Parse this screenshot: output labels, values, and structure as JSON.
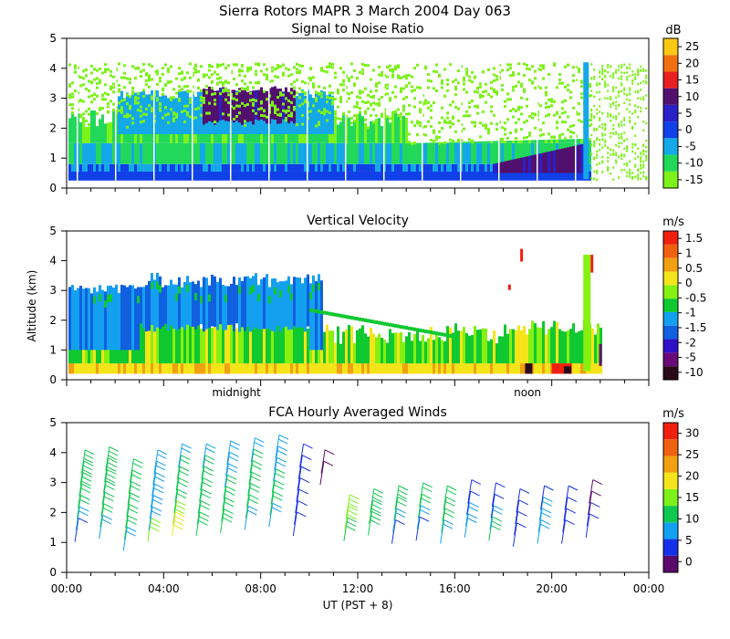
{
  "header": {
    "title": "Sierra Rotors  MAPR  3 March 2004 Day 063"
  },
  "x_axis": {
    "label": "UT  (PST + 8)",
    "range_hours": [
      0,
      24
    ],
    "ticks": [
      {
        "hour": 0,
        "label": "00:00"
      },
      {
        "hour": 4,
        "label": "04:00"
      },
      {
        "hour": 8,
        "label": "08:00"
      },
      {
        "hour": 12,
        "label": "12:00"
      },
      {
        "hour": 16,
        "label": "16:00"
      },
      {
        "hour": 20,
        "label": "20:00"
      },
      {
        "hour": 24,
        "label": "00:00"
      }
    ],
    "midpanel_labels": [
      {
        "hour": 7,
        "label": "midnight"
      },
      {
        "hour": 19,
        "label": "noon"
      }
    ]
  },
  "y_axis": {
    "label": "Altitude (km)",
    "range": [
      0,
      5
    ],
    "ticks": [
      "0",
      "1",
      "2",
      "3",
      "4",
      "5"
    ]
  },
  "colors": {
    "snr": [
      "#7df21a",
      "#22d85a",
      "#14a8e8",
      "#1040e8",
      "#2a20c8",
      "#52106e",
      "#e82020",
      "#f07010",
      "#fac814"
    ],
    "velocity": [
      "#2a0a18",
      "#6a0a7a",
      "#3010c8",
      "#1060e0",
      "#14a0f0",
      "#10c830",
      "#86f010",
      "#f5e41a",
      "#f0a010",
      "#f06010",
      "#f02010"
    ],
    "winds": [
      "#5a0a6a",
      "#1530e8",
      "#14a0f0",
      "#10c850",
      "#7df21a",
      "#f5e41a",
      "#f0a010",
      "#f06010",
      "#f02010"
    ]
  },
  "chart_data": [
    {
      "type": "heatmap",
      "name": "snr",
      "title": "Signal to Noise Ratio",
      "xlabel": "",
      "ylabel": "",
      "xlim": [
        0,
        24
      ],
      "ylim": [
        0,
        5
      ],
      "colorbar": {
        "unit": "dB",
        "range": [
          -15,
          27
        ],
        "tick_labels": [
          "25",
          "20",
          "15",
          "10",
          "5",
          "0",
          "-5",
          "-10",
          "-15"
        ]
      },
      "regions": [
        {
          "label": "high SNR layer near surface",
          "x": [
            0,
            21.5
          ],
          "y": [
            0.25,
            0.6
          ],
          "value": 2
        },
        {
          "label": "moderate SNR layer",
          "x": [
            0,
            21.5
          ],
          "y": [
            0.6,
            1.5
          ],
          "value": -8
        },
        {
          "label": "strong echo overnight",
          "x": [
            5.5,
            9.5
          ],
          "y": [
            2.0,
            3.4
          ],
          "value": 10
        },
        {
          "label": "strong echo morning",
          "x": [
            18.0,
            21.3
          ],
          "y": [
            0.5,
            1.3
          ],
          "value": 9
        },
        {
          "label": "weak echo cap",
          "x": [
            0,
            24
          ],
          "y": [
            1.5,
            4.2
          ],
          "value": -14
        }
      ]
    },
    {
      "type": "heatmap",
      "name": "vertical_velocity",
      "title": "Vertical Velocity",
      "xlabel": "",
      "ylabel": "Altitude (km)",
      "xlim": [
        0,
        24
      ],
      "ylim": [
        0,
        5
      ],
      "colorbar": {
        "unit": "m/s",
        "range": [
          -10,
          2
        ],
        "tick_labels": [
          "1.5",
          "1",
          "0.5",
          "0",
          "-0.5",
          "-1",
          "-1.5",
          "-2",
          "-5",
          "-10"
        ]
      },
      "regions": [
        {
          "label": "near-surface layer",
          "x": [
            0,
            22
          ],
          "y": [
            0.2,
            0.6
          ],
          "value": 0.3
        },
        {
          "label": "mixed layer",
          "x": [
            0,
            21.5
          ],
          "y": [
            0.6,
            2.0
          ],
          "value": -0.4
        },
        {
          "label": "downdrafts overnight",
          "x": [
            3.0,
            10.5
          ],
          "y": [
            1.0,
            3.7
          ],
          "value": -1.2
        },
        {
          "label": "updraft plume",
          "x": [
            18.5,
            21.3
          ],
          "y": [
            0.0,
            0.5
          ],
          "value": 1.8
        }
      ]
    },
    {
      "type": "scatter",
      "name": "fca_winds",
      "title": "FCA Hourly Averaged Winds",
      "xlabel": "UT  (PST + 8)",
      "ylabel": "",
      "xlim": [
        0,
        24
      ],
      "ylim": [
        0,
        5
      ],
      "colorbar": {
        "unit": "m/s",
        "range": [
          0,
          31
        ],
        "tick_labels": [
          "30",
          "25",
          "20",
          "15",
          "10",
          "5",
          "0"
        ]
      },
      "profiles": [
        {
          "hour": 0.5,
          "top": 3.3,
          "speeds": [
            6,
            10,
            12,
            12,
            13,
            13,
            14
          ]
        },
        {
          "hour": 1.5,
          "top": 3.4,
          "speeds": [
            10,
            11,
            12,
            12,
            13,
            13,
            14
          ]
        },
        {
          "hour": 2.5,
          "top": 3.0,
          "speeds": [
            10,
            11,
            11,
            11,
            12,
            12,
            12
          ]
        },
        {
          "hour": 3.5,
          "top": 3.3,
          "speeds": [
            15,
            9,
            8,
            8,
            9,
            9,
            10
          ]
        },
        {
          "hour": 4.5,
          "top": 3.5,
          "speeds": [
            18,
            15,
            11,
            11,
            11,
            11,
            10
          ]
        },
        {
          "hour": 5.5,
          "top": 3.5,
          "speeds": [
            14,
            12,
            11,
            11,
            11,
            11,
            10
          ]
        },
        {
          "hour": 6.5,
          "top": 3.6,
          "speeds": [
            13,
            11,
            11,
            11,
            10,
            10,
            10
          ]
        },
        {
          "hour": 7.5,
          "top": 3.7,
          "speeds": [
            8,
            11,
            12,
            12,
            11,
            11,
            10
          ]
        },
        {
          "hour": 8.5,
          "top": 3.8,
          "speeds": [
            9,
            11,
            12,
            11,
            10,
            9,
            8
          ]
        },
        {
          "hour": 9.5,
          "top": 3.5,
          "speeds": [
            6,
            6,
            5,
            4,
            4,
            4,
            4
          ]
        },
        {
          "hour": 10.5,
          "top": 3.3,
          "speeds": [
            3,
            3
          ]
        },
        {
          "hour": 11.5,
          "top": 1.8,
          "speeds": [
            14,
            15,
            15
          ]
        },
        {
          "hour": 12.5,
          "top": 2.0,
          "speeds": [
            14,
            13,
            13
          ]
        },
        {
          "hour": 13.5,
          "top": 2.1,
          "speeds": [
            5,
            10,
            12,
            13
          ]
        },
        {
          "hour": 14.5,
          "top": 2.2,
          "speeds": [
            4,
            10,
            11,
            12
          ]
        },
        {
          "hour": 15.5,
          "top": 2.1,
          "speeds": [
            10,
            11,
            11,
            11
          ]
        },
        {
          "hour": 16.5,
          "top": 2.3,
          "speeds": [
            8,
            8,
            6,
            6
          ]
        },
        {
          "hour": 17.5,
          "top": 2.2,
          "speeds": [
            14,
            10,
            7,
            6
          ]
        },
        {
          "hour": 18.5,
          "top": 2.0,
          "speeds": [
            5,
            5,
            5,
            5
          ]
        },
        {
          "hour": 19.5,
          "top": 2.1,
          "speeds": [
            9,
            9,
            8,
            7
          ]
        },
        {
          "hour": 20.5,
          "top": 2.1,
          "speeds": [
            5,
            5,
            5,
            5
          ]
        },
        {
          "hour": 21.5,
          "top": 2.3,
          "speeds": [
            4,
            4,
            3,
            3
          ]
        }
      ]
    }
  ]
}
